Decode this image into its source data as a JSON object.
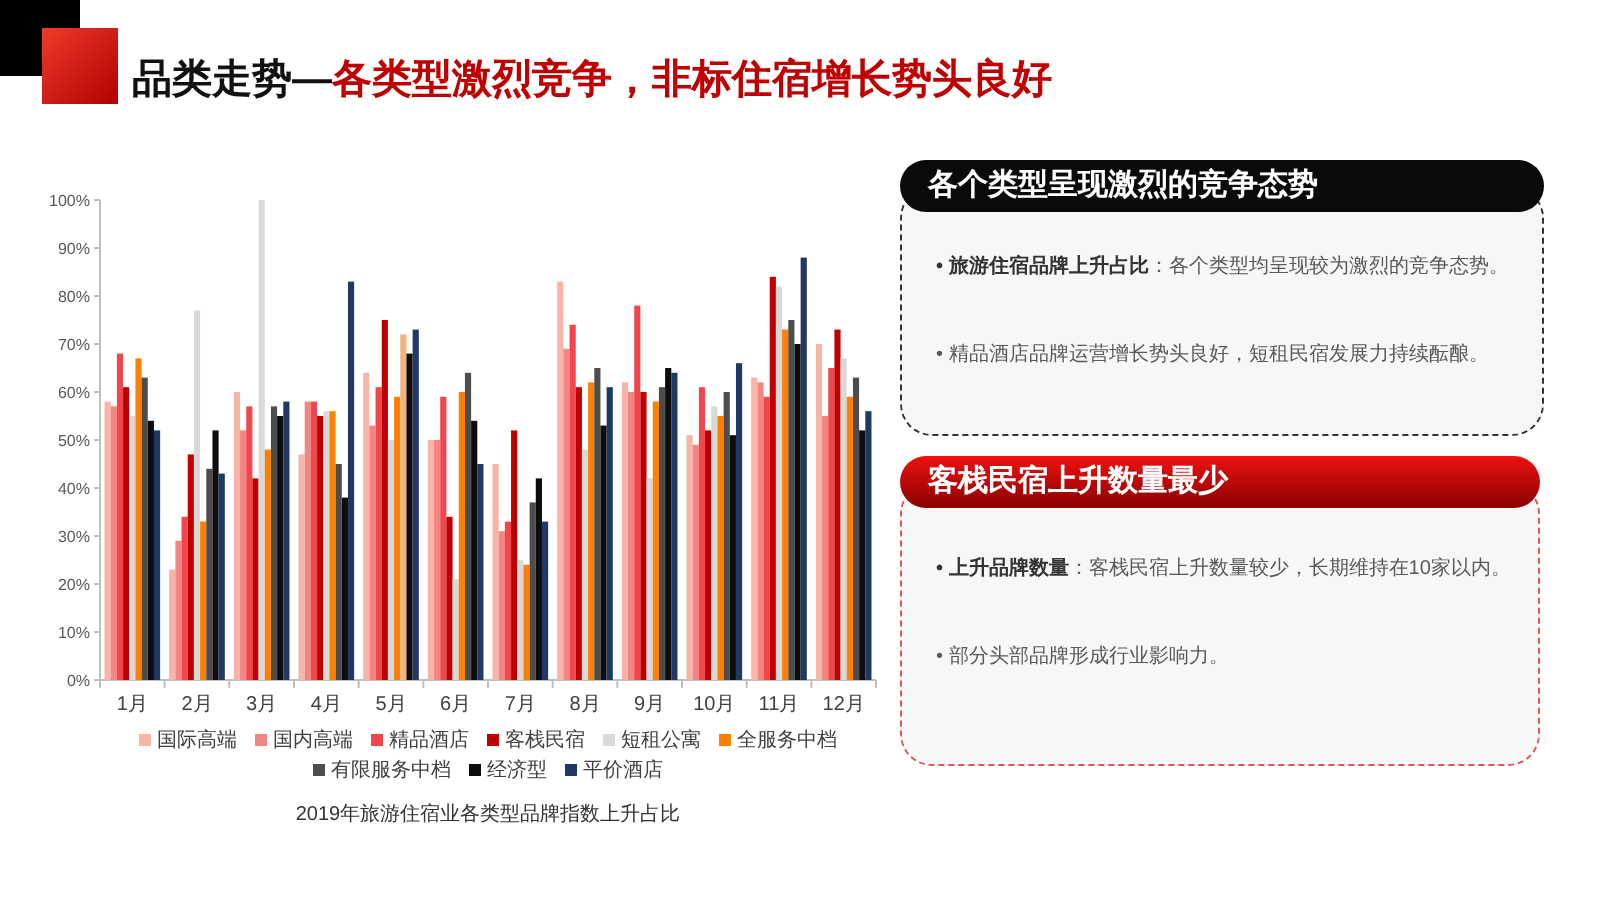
{
  "chart_data": [
    {
      "type": "bar",
      "title": "品类走势—各类型激烈竞争，非标住宿增长势头良好",
      "categories": [
        "1月",
        "2月",
        "3月",
        "4月",
        "5月",
        "6月",
        "7月",
        "8月",
        "9月",
        "10月",
        "11月",
        "12月"
      ],
      "series": [
        {
          "name": "国际高端",
          "color": "#f9b4a6",
          "values": [
            58,
            23,
            60,
            47,
            64,
            50,
            45,
            83,
            62,
            51,
            63,
            70
          ]
        },
        {
          "name": "国内高端",
          "color": "#f28482",
          "values": [
            57,
            29,
            52,
            58,
            53,
            50,
            31,
            69,
            60,
            49,
            62,
            55
          ]
        },
        {
          "name": "精品酒店",
          "color": "#f0464c",
          "values": [
            68,
            34,
            57,
            58,
            61,
            59,
            33,
            74,
            78,
            61,
            59,
            65
          ]
        },
        {
          "name": "客栈民宿",
          "color": "#c00000",
          "values": [
            61,
            47,
            42,
            55,
            75,
            34,
            52,
            61,
            60,
            52,
            84,
            73
          ]
        },
        {
          "name": "短租公寓",
          "color": "#d9d9d9",
          "values": [
            55,
            77,
            100,
            56,
            50,
            21,
            25,
            48,
            42,
            57,
            82,
            67
          ]
        },
        {
          "name": "全服务中档",
          "color": "#ff8000",
          "values": [
            67,
            33,
            48,
            56,
            59,
            60,
            24,
            62,
            58,
            55,
            73,
            59
          ]
        },
        {
          "name": "有限服务中档",
          "color": "#4d4d4d",
          "colors": [
            "#4d4d4d",
            "#4d4d4d",
            "#4d4d4d",
            "#4d4d4d",
            "#f6b27c",
            "#4d4d4d",
            "#4d4d4d",
            "#4d4d4d",
            "#4d4d4d",
            "#4d4d4d",
            "#4d4d4d",
            "#4d4d4d"
          ],
          "values": [
            63,
            44,
            57,
            45,
            72,
            64,
            37,
            65,
            61,
            60,
            75,
            63
          ]
        },
        {
          "name": "经济型",
          "color": "#0d0d0d",
          "values": [
            54,
            52,
            55,
            38,
            68,
            54,
            42,
            53,
            65,
            51,
            70,
            52
          ]
        },
        {
          "name": "平价酒店",
          "color": "#1f3864",
          "values": [
            52,
            43,
            58,
            83,
            73,
            45,
            33,
            61,
            64,
            66,
            88,
            56
          ]
        }
      ],
      "ylim": [
        0,
        100
      ],
      "yticks": [
        {
          "value": 0,
          "label": "0%"
        },
        {
          "value": 10,
          "label": "10%"
        },
        {
          "value": 20,
          "label": "20%"
        },
        {
          "value": 30,
          "label": "30%"
        },
        {
          "value": 40,
          "label": "40%"
        },
        {
          "value": 50,
          "label": "50%"
        },
        {
          "value": 60,
          "label": "60%"
        },
        {
          "value": 70,
          "label": "70%"
        },
        {
          "value": 80,
          "label": "80%"
        },
        {
          "value": 90,
          "label": "90%"
        },
        {
          "value": 100,
          "label": "100%"
        }
      ],
      "legend": "bottom",
      "annotations": [
        "2019年旅游住宿业各类型品牌指数上升占比"
      ]
    },
    {
      "type": "other",
      "title": "各个类型呈现激烈的竞争态势",
      "annotations": [
        "• 旅游住宿品牌上升占比：各个类型均呈现较为激烈的竞争态势。",
        "• 精品酒店品牌运营增长势头良好，短租民宿发展力持续酝酿。"
      ]
    },
    {
      "type": "other",
      "title": "客栈民宿上升数量最少",
      "annotations": [
        "• 上升品牌数量：客栈民宿上升数量较少，长期维持在10家以内。",
        "• 部分头部品牌形成行业影响力。"
      ]
    }
  ]
}
